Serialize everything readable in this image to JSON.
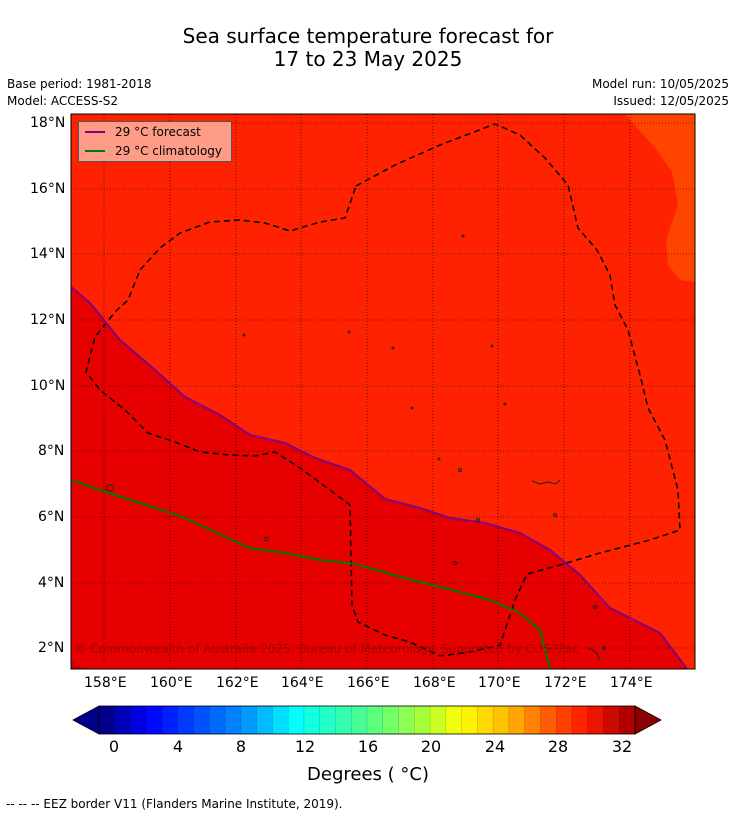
{
  "title_line1": "Sea surface temperature forecast for",
  "title_line2": "17 to 23 May 2025",
  "meta": {
    "base_period": "Base period: 1981-2018",
    "model": "Model: ACCESS-S2",
    "model_run": "Model run: 10/05/2025",
    "issued": "Issued: 12/05/2025"
  },
  "axes": {
    "x_ticks": [
      "158°E",
      "160°E",
      "162°E",
      "164°E",
      "166°E",
      "168°E",
      "170°E",
      "172°E",
      "174°E"
    ],
    "y_ticks": [
      "18°N",
      "16°N",
      "14°N",
      "12°N",
      "10°N",
      "8°N",
      "6°N",
      "4°N",
      "2°N"
    ]
  },
  "legend": {
    "forecast_label": "29 °C  forecast",
    "climatology_label": "29 °C  climatology"
  },
  "colorbar": {
    "tick_labels": [
      "0",
      "4",
      "8",
      "12",
      "16",
      "20",
      "24",
      "28",
      "32"
    ],
    "title": "Degrees ( °C)"
  },
  "footnote": "--  --  -- EEZ border V11 (Flanders Marine Institute, 2019).",
  "copyright": "© Commonwealth of Australia 2025, Bureau of Meteorology. Supported by COSPPac",
  "colors": {
    "warm_region": "#ff2200",
    "hot_region": "#e60000",
    "cool_corner": "#ff4400",
    "forecast_line": "#800080",
    "climatology_line": "#007a00",
    "eez_border": "#000000"
  }
}
